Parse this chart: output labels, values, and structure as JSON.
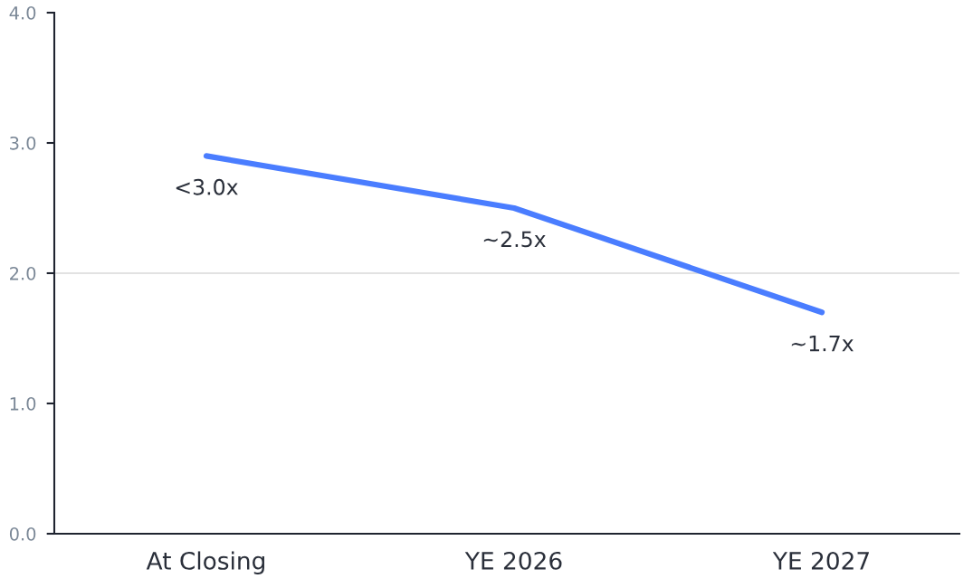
{
  "chart_data": {
    "type": "line",
    "categories": [
      "At Closing",
      "YE 2026",
      "YE 2027"
    ],
    "series": [
      {
        "color": "#4a7dff",
        "values": [
          2.9,
          2.5,
          1.7
        ],
        "value_labels": [
          "<3.0x",
          "~2.5x",
          "~1.7x"
        ]
      }
    ],
    "ylim": [
      0,
      4
    ],
    "yticks": [
      {
        "value": 0,
        "label": "0.0"
      },
      {
        "value": 1,
        "label": "1.0"
      },
      {
        "value": 2,
        "label": "2.0"
      },
      {
        "value": 3,
        "label": "3.0"
      },
      {
        "value": 4,
        "label": "4.0"
      }
    ],
    "ref_lines": [
      {
        "axis": "y",
        "value": 2,
        "color": "#d9d9d9"
      }
    ],
    "grid": false,
    "marker": "none",
    "line_style": "solid"
  }
}
